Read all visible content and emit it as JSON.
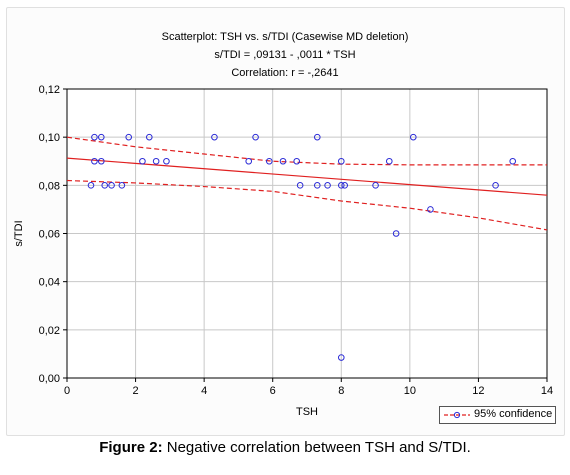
{
  "chart_data": {
    "type": "scatter",
    "title_lines": [
      "Scatterplot: TSH vs. s/TDI (Casewise MD deletion)",
      "s/TDI = ,09131 - ,0011  * TSH",
      "Correlation: r = -,2641"
    ],
    "xlabel": "TSH",
    "ylabel": "s/TDI",
    "xlim": [
      0,
      14
    ],
    "ylim": [
      0,
      0.12
    ],
    "x_ticks": [
      0,
      2,
      4,
      6,
      8,
      10,
      12,
      14
    ],
    "y_ticks": [
      0,
      0.02,
      0.04,
      0.06,
      0.08,
      0.1,
      0.12
    ],
    "x_tick_labels": [
      "0",
      "2",
      "4",
      "6",
      "8",
      "10",
      "12",
      "14"
    ],
    "y_tick_labels": [
      "0,00",
      "0,02",
      "0,04",
      "0,06",
      "0,08",
      "0,10",
      "0,12"
    ],
    "grid": true,
    "legend": {
      "placement": "bottom-right",
      "label": "95% confidence"
    },
    "points": [
      {
        "x": 0.8,
        "y": 0.1
      },
      {
        "x": 1.0,
        "y": 0.1
      },
      {
        "x": 1.8,
        "y": 0.1
      },
      {
        "x": 2.4,
        "y": 0.1
      },
      {
        "x": 4.3,
        "y": 0.1
      },
      {
        "x": 5.5,
        "y": 0.1
      },
      {
        "x": 7.3,
        "y": 0.1
      },
      {
        "x": 10.1,
        "y": 0.1
      },
      {
        "x": 0.8,
        "y": 0.09
      },
      {
        "x": 1.0,
        "y": 0.09
      },
      {
        "x": 2.2,
        "y": 0.09
      },
      {
        "x": 2.6,
        "y": 0.09
      },
      {
        "x": 2.9,
        "y": 0.09
      },
      {
        "x": 5.3,
        "y": 0.09
      },
      {
        "x": 5.9,
        "y": 0.09
      },
      {
        "x": 6.3,
        "y": 0.09
      },
      {
        "x": 6.7,
        "y": 0.09
      },
      {
        "x": 8.0,
        "y": 0.09
      },
      {
        "x": 9.4,
        "y": 0.09
      },
      {
        "x": 13.0,
        "y": 0.09
      },
      {
        "x": 0.7,
        "y": 0.08
      },
      {
        "x": 1.1,
        "y": 0.08
      },
      {
        "x": 1.3,
        "y": 0.08
      },
      {
        "x": 1.6,
        "y": 0.08
      },
      {
        "x": 6.8,
        "y": 0.08
      },
      {
        "x": 7.3,
        "y": 0.08
      },
      {
        "x": 7.6,
        "y": 0.08
      },
      {
        "x": 8.0,
        "y": 0.08
      },
      {
        "x": 8.1,
        "y": 0.08
      },
      {
        "x": 9.0,
        "y": 0.08
      },
      {
        "x": 12.5,
        "y": 0.08
      },
      {
        "x": 10.6,
        "y": 0.07
      },
      {
        "x": 9.6,
        "y": 0.06
      },
      {
        "x": 8.0,
        "y": 0.0085
      }
    ],
    "regression": {
      "intercept": 0.09131,
      "slope": -0.0011
    },
    "confidence_upper": [
      [
        0,
        0.1
      ],
      [
        2,
        0.096
      ],
      [
        4,
        0.093
      ],
      [
        6,
        0.09
      ],
      [
        8,
        0.0888
      ],
      [
        10,
        0.0885
      ],
      [
        12,
        0.0885
      ],
      [
        14,
        0.0885
      ]
    ],
    "confidence_lower": [
      [
        0,
        0.082
      ],
      [
        2,
        0.081
      ],
      [
        4,
        0.0795
      ],
      [
        6,
        0.0775
      ],
      [
        8,
        0.0735
      ],
      [
        10,
        0.0705
      ],
      [
        12,
        0.0665
      ],
      [
        14,
        0.0615
      ]
    ],
    "colors": {
      "points": "#2b2bd6",
      "fit": "#e02020",
      "grid": "#c8c8c8",
      "axis": "#000000"
    }
  },
  "caption": {
    "label": "Figure 2:",
    "text": " Negative correlation between TSH and S/TDI."
  }
}
